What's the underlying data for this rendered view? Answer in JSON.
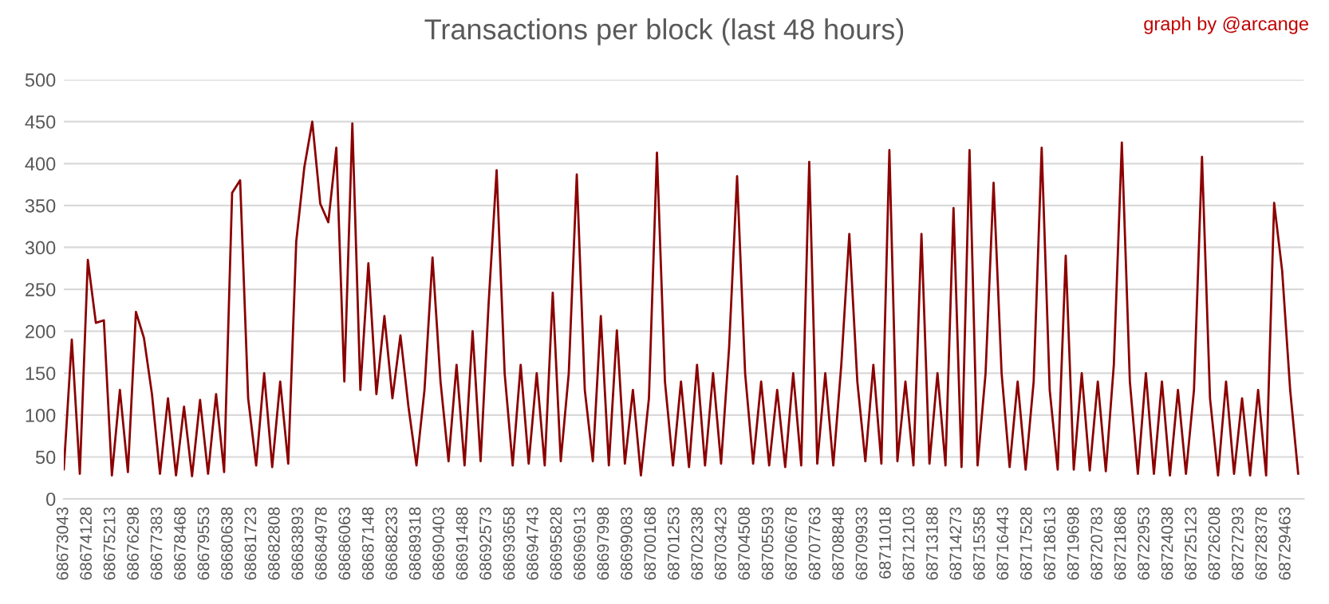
{
  "chart_data": {
    "type": "line",
    "title": "Transactions per block (last 48 hours)",
    "annotations": [
      "graph by @arcange"
    ],
    "series": [
      {
        "color": "#8b0000",
        "x": [
          68673043,
          68673413,
          68673783,
          68674153,
          68674523,
          68674893,
          68675263,
          68675633,
          68676003,
          68676373,
          68676743,
          68677113,
          68677483,
          68677853,
          68678223,
          68678593,
          68678963,
          68679333,
          68679703,
          68680073,
          68680443,
          68680813,
          68681183,
          68681553,
          68681923,
          68682293,
          68682663,
          68683033,
          68683403,
          68683773,
          68684143,
          68684513,
          68684883,
          68685253,
          68685623,
          68685993,
          68686363,
          68686733,
          68687103,
          68687473,
          68687843,
          68688213,
          68688583,
          68688953,
          68689323,
          68689693,
          68690063,
          68690433,
          68690803,
          68691173,
          68691543,
          68691913,
          68692283,
          68692653,
          68693023,
          68693393,
          68693763,
          68694133,
          68694503,
          68694873,
          68695243,
          68695613,
          68695983,
          68696353,
          68696723,
          68697093,
          68697463,
          68697833,
          68698203,
          68698573,
          68698943,
          68699313,
          68699683,
          68700053,
          68700423,
          68700793,
          68701163,
          68701533,
          68701903,
          68702273,
          68702643,
          68703013,
          68703383,
          68703753,
          68704123,
          68704493,
          68704863,
          68705233,
          68705603,
          68705973,
          68706343,
          68706713,
          68707083,
          68707453,
          68707823,
          68708193,
          68708563,
          68708933,
          68709303,
          68709673,
          68710043,
          68710413,
          68710783,
          68711153,
          68711523,
          68711893,
          68712263,
          68712633,
          68713003,
          68713373,
          68713743,
          68714113,
          68714483,
          68714853,
          68715223,
          68715593,
          68715963,
          68716333,
          68716703,
          68717073,
          68717443,
          68717813,
          68718183,
          68718553,
          68718923,
          68719293,
          68719663,
          68720033,
          68720403,
          68720773,
          68721143,
          68721513,
          68721883,
          68722253,
          68722623,
          68722993,
          68723363,
          68723733,
          68724103,
          68724473,
          68724843,
          68725213,
          68725583,
          68725953,
          68726323,
          68726693,
          68727063,
          68727433,
          68727803,
          68728173,
          68728543,
          68728913,
          68729283,
          68729653,
          68730023
        ],
        "values": [
          35,
          190,
          30,
          285,
          210,
          213,
          28,
          130,
          32,
          223,
          192,
          125,
          30,
          120,
          28,
          110,
          27,
          118,
          30,
          125,
          32,
          365,
          380,
          120,
          40,
          150,
          38,
          140,
          42,
          307,
          395,
          450,
          352,
          330,
          419,
          140,
          448,
          130,
          281,
          125,
          218,
          120,
          195,
          110,
          40,
          130,
          288,
          140,
          45,
          160,
          40,
          200,
          45,
          233,
          392,
          150,
          40,
          160,
          42,
          150,
          40,
          246,
          45,
          150,
          387,
          130,
          45,
          218,
          40,
          201,
          42,
          130,
          28,
          120,
          413,
          140,
          40,
          140,
          38,
          160,
          40,
          150,
          42,
          180,
          385,
          150,
          42,
          140,
          40,
          130,
          38,
          150,
          40,
          402,
          42,
          150,
          40,
          160,
          316,
          140,
          45,
          160,
          42,
          416,
          45,
          140,
          40,
          316,
          42,
          150,
          40,
          347,
          38,
          416,
          40,
          150,
          377,
          150,
          38,
          140,
          35,
          140,
          419,
          130,
          35,
          290,
          35,
          150,
          34,
          140,
          33,
          160,
          425,
          140,
          30,
          150,
          30,
          140,
          28,
          130,
          30,
          130,
          408,
          120,
          28,
          140,
          30,
          120,
          28,
          130,
          28,
          353,
          272,
          130,
          30
        ]
      }
    ],
    "xlim": [
      68673043,
      68730280
    ],
    "xticks": [
      68673043,
      68674128,
      68675213,
      68676298,
      68677383,
      68678468,
      68679553,
      68680638,
      68681723,
      68682808,
      68683893,
      68684978,
      68686063,
      68687148,
      68688233,
      68689318,
      68690403,
      68691488,
      68692573,
      68693658,
      68694743,
      68695828,
      68696913,
      68697998,
      68699083,
      68700168,
      68701253,
      68702338,
      68703423,
      68704508,
      68705593,
      68706678,
      68707763,
      68708848,
      68709933,
      68711018,
      68712103,
      68713188,
      68714273,
      68715358,
      68716443,
      68717528,
      68718613,
      68719698,
      68720783,
      68721868,
      68722953,
      68724038,
      68725123,
      68726208,
      68727293,
      68728378,
      68729463
    ],
    "ylim": [
      0,
      500
    ],
    "yticks": [
      0,
      50,
      100,
      150,
      200,
      250,
      300,
      350,
      400,
      450,
      500
    ],
    "grid": "y",
    "marker": "none",
    "line_style": "solid"
  }
}
